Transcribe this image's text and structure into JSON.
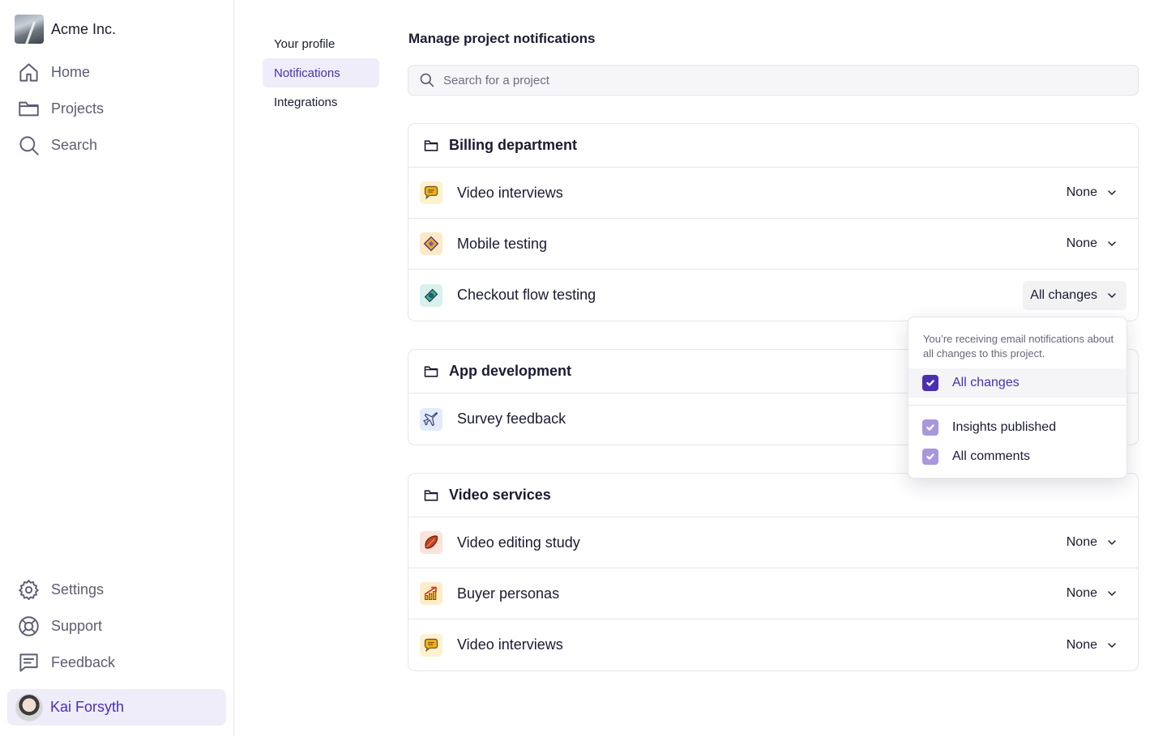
{
  "sidebar": {
    "org_name": "Acme Inc.",
    "nav": [
      {
        "label": "Home",
        "icon": "home-icon"
      },
      {
        "label": "Projects",
        "icon": "folder-icon"
      },
      {
        "label": "Search",
        "icon": "search-icon"
      }
    ],
    "bottom_nav": [
      {
        "label": "Settings",
        "icon": "gear-icon"
      },
      {
        "label": "Support",
        "icon": "lifebuoy-icon"
      },
      {
        "label": "Feedback",
        "icon": "message-icon"
      }
    ],
    "user_name": "Kai Forsyth"
  },
  "subnav": [
    {
      "label": "Your profile",
      "active": false
    },
    {
      "label": "Notifications",
      "active": true
    },
    {
      "label": "Integrations",
      "active": false
    }
  ],
  "main": {
    "title": "Manage project notifications",
    "search_placeholder": "Search for a project",
    "groups": [
      {
        "name": "Billing department",
        "projects": [
          {
            "name": "Video interviews",
            "setting": "None",
            "icon": "speech-bubble-icon"
          },
          {
            "name": "Mobile testing",
            "setting": "None",
            "icon": "ticket-icon"
          },
          {
            "name": "Checkout flow testing",
            "setting": "All changes",
            "icon": "banknote-icon"
          }
        ]
      },
      {
        "name": "App development",
        "projects": [
          {
            "name": "Survey feedback",
            "setting": "",
            "icon": "airplane-icon"
          }
        ]
      },
      {
        "name": "Video services",
        "projects": [
          {
            "name": "Video editing study",
            "setting": "None",
            "icon": "leaf-icon"
          },
          {
            "name": "Buyer personas",
            "setting": "None",
            "icon": "chart-up-icon"
          },
          {
            "name": "Video interviews",
            "setting": "None",
            "icon": "speech-bubble-icon"
          }
        ]
      }
    ]
  },
  "dropdown": {
    "description": "You’re receiving email notifications about all changes to this project.",
    "options": [
      {
        "label": "All changes",
        "checked": true
      },
      {
        "label": "Insights published",
        "checked": true
      },
      {
        "label": "All comments",
        "checked": true
      }
    ]
  },
  "colors": {
    "accent": "#4a2fb0",
    "accent_light": "#efedfa",
    "border": "#e6e6ec"
  }
}
